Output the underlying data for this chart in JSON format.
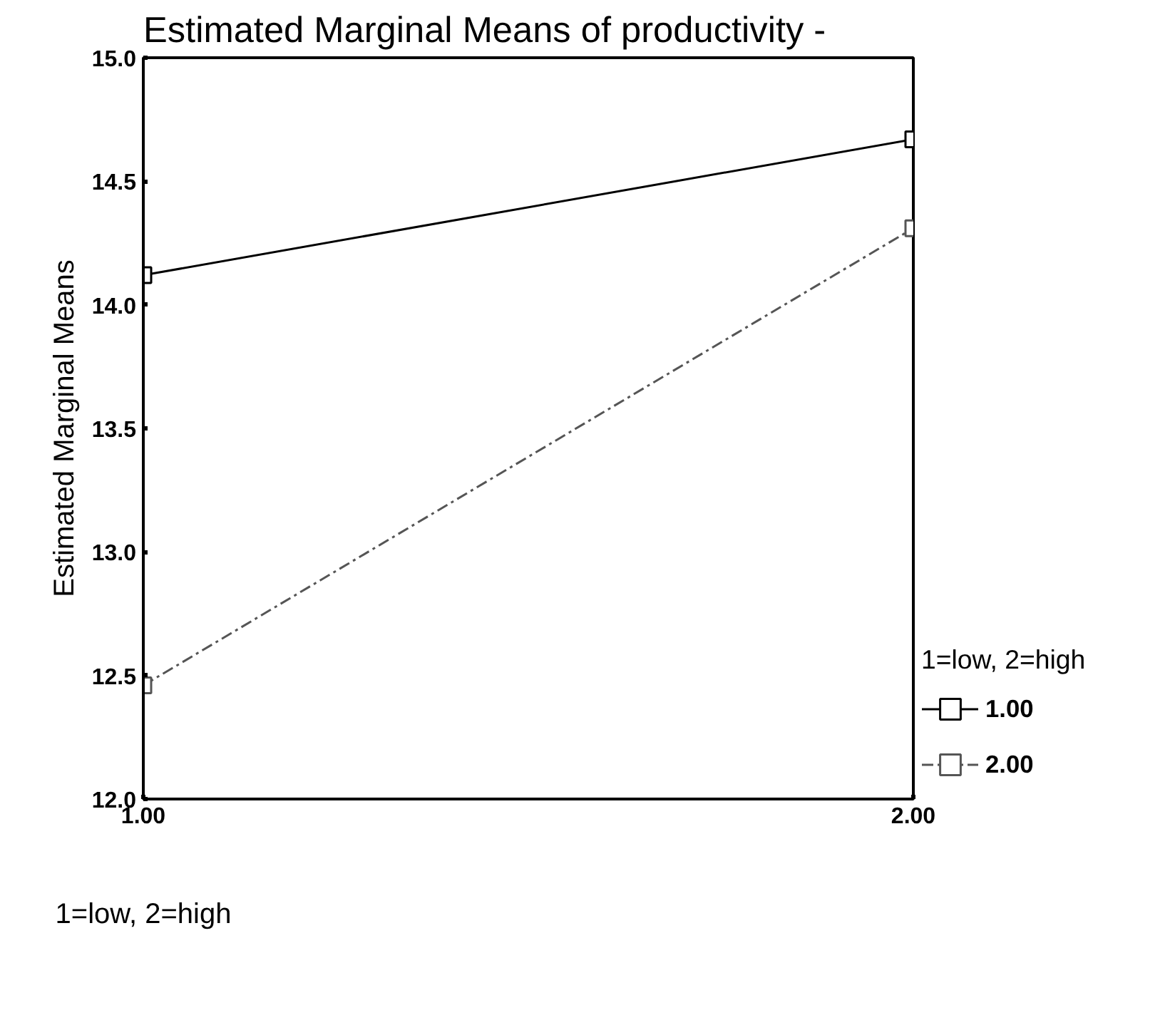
{
  "chart_data": {
    "type": "line",
    "title": "Estimated Marginal Means of productivity -",
    "xlabel": "1=low, 2=high",
    "ylabel": "Estimated Marginal Means",
    "legend_title": "1=low, 2=high",
    "x": [
      1,
      2
    ],
    "xlim": [
      1,
      2
    ],
    "xticks": [
      {
        "value": 1,
        "label": "1.00"
      },
      {
        "value": 2,
        "label": "2.00"
      }
    ],
    "ylim": [
      12,
      15
    ],
    "yticks": [
      {
        "value": 12,
        "label": "12.0"
      },
      {
        "value": 12.5,
        "label": "12.5"
      },
      {
        "value": 13,
        "label": "13.0"
      },
      {
        "value": 13.5,
        "label": "13.5"
      },
      {
        "value": 14,
        "label": "14.0"
      },
      {
        "value": 14.5,
        "label": "14.5"
      },
      {
        "value": 15,
        "label": "15.0"
      }
    ],
    "series": [
      {
        "name": "1.00",
        "color": "#000000",
        "values": [
          14.12,
          14.67
        ],
        "line_style": "solid"
      },
      {
        "name": "2.00",
        "color": "#555555",
        "values": [
          12.46,
          14.31
        ],
        "line_style": "dashed"
      }
    ],
    "marker": "square",
    "grid": false,
    "legend": "right"
  }
}
